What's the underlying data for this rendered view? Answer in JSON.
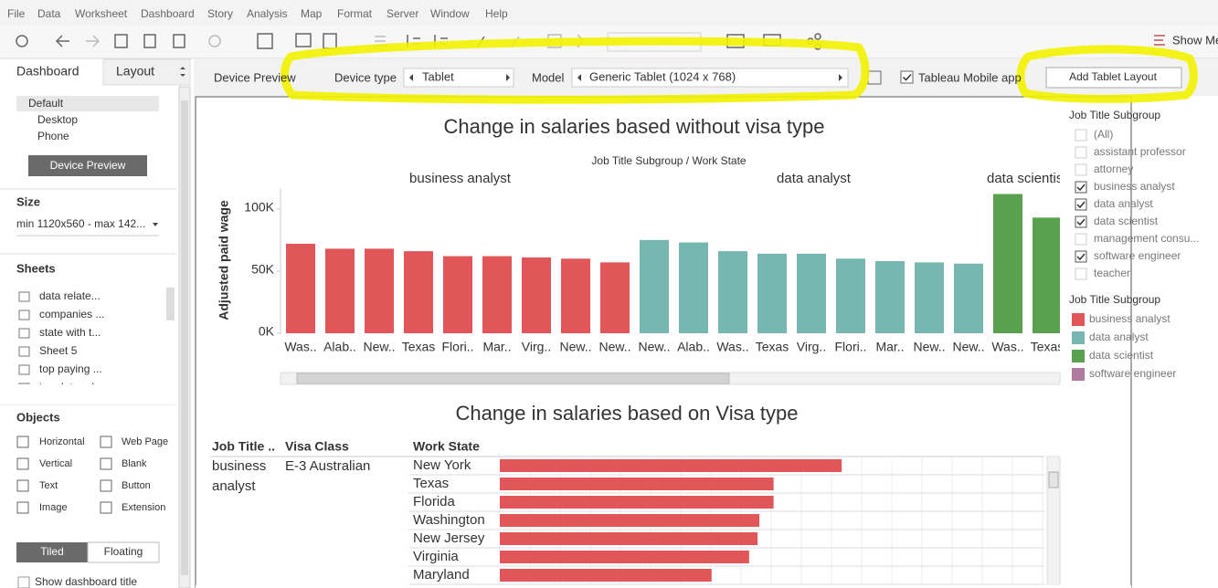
{
  "menu": [
    "File",
    "Data",
    "Worksheet",
    "Dashboard",
    "Story",
    "Analysis",
    "Map",
    "Format",
    "Server",
    "Window",
    "Help"
  ],
  "toolbar": {
    "show_me": "Show Me"
  },
  "left_panel": {
    "tabs": [
      "Dashboard",
      "Layout"
    ],
    "devices": [
      "Default",
      "Desktop",
      "Phone"
    ],
    "device_preview_button": "Device Preview",
    "size_title": "Size",
    "size_value": "min 1120x560 - max 142...",
    "sheets_title": "Sheets",
    "sheets": [
      "data relate...",
      "companies ...",
      "state with t...",
      "Sheet 5",
      "top paying ...",
      "top data rel"
    ],
    "objects_title": "Objects",
    "objects": [
      "Horizontal",
      "Web Page",
      "Vertical",
      "Blank",
      "Text",
      "Button",
      "Image",
      "Extension"
    ],
    "layout_modes": [
      "Tiled",
      "Floating"
    ],
    "show_title": "Show dashboard title"
  },
  "device_bar": {
    "label": "Device Preview",
    "device_type_label": "Device type",
    "device_type": "Tablet",
    "model_label": "Model",
    "model": "Generic Tablet (1024 x 768)",
    "mobile_app": "Tableau Mobile app",
    "add_layout": "Add Tablet Layout"
  },
  "chart1": {
    "type": "bar",
    "title": "Change in salaries based without visa type",
    "subtitle": "Job Title Subgroup / Work State",
    "y_label": "Adjusted paid wage",
    "ylim": [
      0,
      116000
    ],
    "yticks": [
      {
        "value": 0,
        "label": "0K"
      },
      {
        "value": 50000,
        "label": "50K"
      },
      {
        "value": 100000,
        "label": "100K"
      }
    ],
    "panes": [
      {
        "name": "business analyst",
        "color": "#e15759",
        "categories": [
          "Was..",
          "Alab..",
          "New..",
          "Texas",
          "Flori..",
          "Mar..",
          "Virg..",
          "New..",
          "New.."
        ],
        "values": [
          72000,
          68000,
          68000,
          66000,
          62000,
          62000,
          61000,
          60000,
          57000
        ]
      },
      {
        "name": "data analyst",
        "color": "#76b7b2",
        "categories": [
          "New..",
          "Alab..",
          "Was..",
          "Texas",
          "Virg..",
          "Flori..",
          "Mar..",
          "New..",
          "New.."
        ],
        "values": [
          75000,
          73000,
          66000,
          64000,
          64000,
          60000,
          58000,
          57000,
          56000
        ]
      },
      {
        "name": "data scientist",
        "color": "#59a14f",
        "categories": [
          "Was..",
          "Texas"
        ],
        "values": [
          112000,
          93000
        ]
      }
    ]
  },
  "chart2": {
    "type": "bar",
    "title": "Change in salaries based on Visa type",
    "headers": [
      "Job Title ..",
      "Visa Class",
      "Work State"
    ],
    "job_title": [
      "business",
      "analyst"
    ],
    "visa_class": "E-3 Australian",
    "color": "#e15759",
    "xlim": [
      0,
      180000
    ],
    "categories": [
      "New York",
      "Texas",
      "Florida",
      "Washington",
      "New Jersey",
      "Virginia",
      "Maryland"
    ],
    "values": [
      113000,
      90500,
      90500,
      85800,
      85200,
      82400,
      70000
    ]
  },
  "filter": {
    "title": "Job Title Subgroup",
    "items": [
      {
        "label": "(All)",
        "checked": false
      },
      {
        "label": "assistant professor",
        "checked": false
      },
      {
        "label": "attorney",
        "checked": false
      },
      {
        "label": "business analyst",
        "checked": true
      },
      {
        "label": "data analyst",
        "checked": true
      },
      {
        "label": "data scientist",
        "checked": true
      },
      {
        "label": "management consu...",
        "checked": false
      },
      {
        "label": "software engineer",
        "checked": true
      },
      {
        "label": "teacher",
        "checked": false
      }
    ]
  },
  "color_legend": {
    "title": "Job Title Subgroup",
    "items": [
      {
        "label": "business analyst",
        "color": "#e15759"
      },
      {
        "label": "data analyst",
        "color": "#76b7b2"
      },
      {
        "label": "data scientist",
        "color": "#59a14f"
      },
      {
        "label": "software engineer",
        "color": "#b07aa1"
      }
    ]
  }
}
